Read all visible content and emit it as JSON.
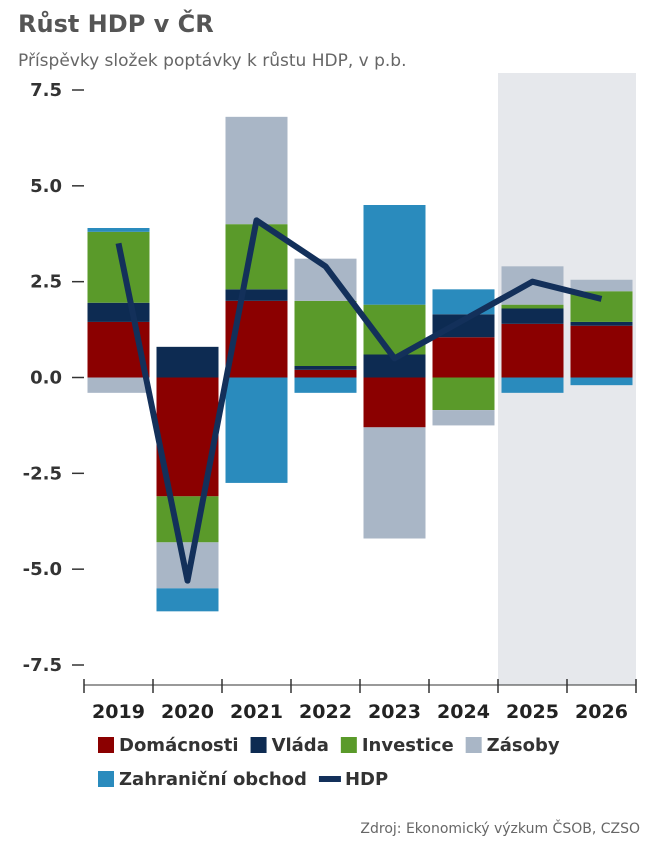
{
  "title": "Růst HDP v ČR",
  "subtitle": "Příspěvky složek poptávky k růstu HDP, v p.b.",
  "source": "Zdroj: Ekonomický výzkum ČSOB, CZSO",
  "chart_data": {
    "type": "bar",
    "stacked": true,
    "categories": [
      "2019",
      "2020",
      "2021",
      "2022",
      "2023",
      "2024",
      "2025",
      "2026"
    ],
    "ylim": [
      -7.5,
      7.5
    ],
    "yticks": [
      "7.5",
      "5.0",
      "2.5",
      "0.0",
      "-2.5",
      "-5.0",
      "-7.5"
    ],
    "ytick_values": [
      7.5,
      5.0,
      2.5,
      0.0,
      -2.5,
      -5.0,
      -7.5
    ],
    "forecast_categories": [
      "2025",
      "2026"
    ],
    "forecast_shade_color": "#e6e8ec",
    "series": [
      {
        "name": "Domácnosti",
        "color": "#8b0000",
        "values": [
          1.45,
          -3.1,
          2.0,
          0.2,
          -1.3,
          1.05,
          1.4,
          1.35
        ]
      },
      {
        "name": "Vláda",
        "color": "#0d2b52",
        "values": [
          0.5,
          0.8,
          0.3,
          0.1,
          0.6,
          0.6,
          0.4,
          0.1
        ]
      },
      {
        "name": "Investice",
        "color": "#5a9a2a",
        "values": [
          1.85,
          -1.2,
          1.7,
          1.7,
          1.3,
          -0.85,
          0.1,
          0.8
        ]
      },
      {
        "name": "Zásoby",
        "color": "#a9b6c6",
        "values": [
          -0.4,
          -1.2,
          2.8,
          1.1,
          -2.9,
          -0.4,
          1.0,
          0.3
        ]
      },
      {
        "name": "Zahraniční obchod",
        "color": "#2a8bbd",
        "values": [
          0.1,
          -0.6,
          -2.75,
          -0.4,
          2.6,
          0.65,
          -0.4,
          -0.2
        ]
      }
    ],
    "line": {
      "name": "HDP",
      "color": "#13305a",
      "values": [
        3.5,
        -5.3,
        4.1,
        2.9,
        0.5,
        1.5,
        2.5,
        2.05
      ]
    },
    "legend": [
      {
        "name": "Domácnosti",
        "color": "#8b0000",
        "kind": "box"
      },
      {
        "name": "Vláda",
        "color": "#0d2b52",
        "kind": "box"
      },
      {
        "name": "Investice",
        "color": "#5a9a2a",
        "kind": "box"
      },
      {
        "name": "Zásoby",
        "color": "#a9b6c6",
        "kind": "box"
      },
      {
        "name": "Zahraniční obchod",
        "color": "#2a8bbd",
        "kind": "box"
      },
      {
        "name": "HDP",
        "color": "#13305a",
        "kind": "line"
      }
    ],
    "legend_position": "bottom",
    "grid": false
  }
}
